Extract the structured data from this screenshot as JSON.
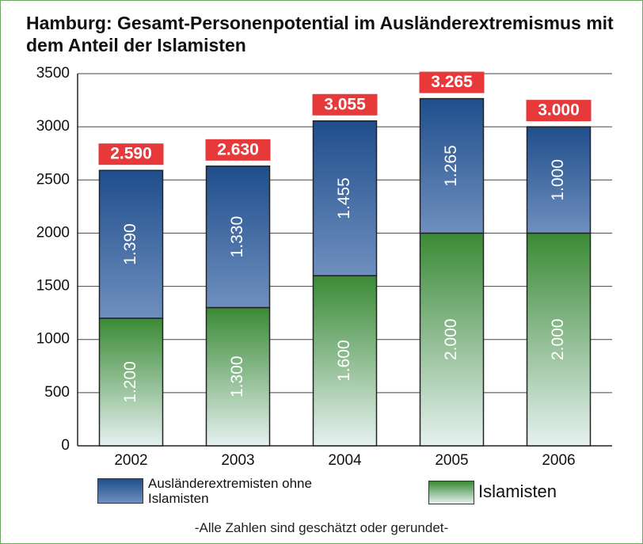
{
  "chart_data": {
    "type": "stacked_bar",
    "title": "Hamburg: Gesamt-Personenpotential im Ausländerextremismus mit dem Anteil der Islamisten",
    "categories": [
      "2002",
      "2003",
      "2004",
      "2005",
      "2006"
    ],
    "series": [
      {
        "name": "Islamisten",
        "color": "#3a8a35",
        "values": [
          1200,
          1300,
          1600,
          2000,
          2000
        ],
        "value_labels": [
          "1.200",
          "1.300",
          "1.600",
          "2.000",
          "2.000"
        ]
      },
      {
        "name": "Ausländerextremisten ohne Islamisten",
        "color": "#1f4e8c",
        "values": [
          1390,
          1330,
          1455,
          1265,
          1000
        ],
        "value_labels": [
          "1.390",
          "1.330",
          "1.455",
          "1.265",
          "1.000"
        ]
      }
    ],
    "totals": [
      2590,
      2630,
      3055,
      3265,
      3000
    ],
    "total_value_labels": [
      "2.590",
      "2.630",
      "3.055",
      "3.265",
      "3.000"
    ],
    "ylim": [
      0,
      3500
    ],
    "yticks": [
      0,
      500,
      1000,
      1500,
      2000,
      2500,
      3000,
      3500
    ],
    "grid": true,
    "note": "-Alle Zahlen sind geschätzt oder gerundet-"
  }
}
